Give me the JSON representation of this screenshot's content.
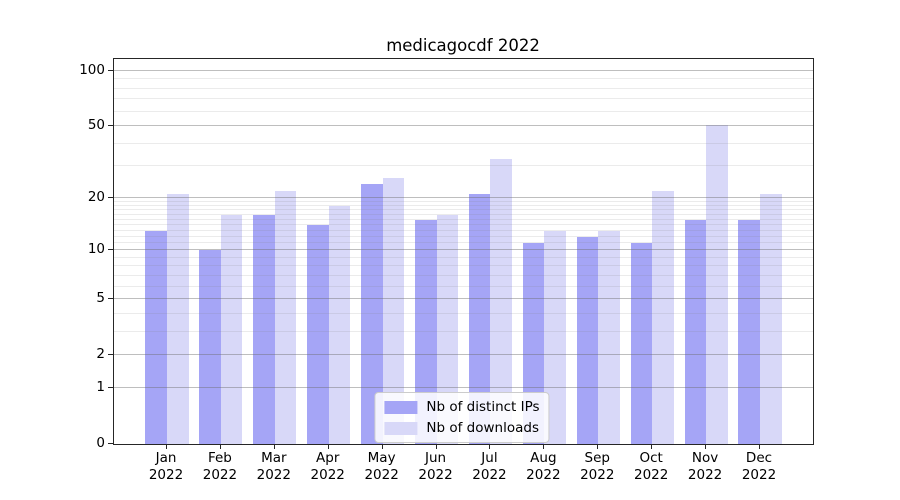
{
  "title": "medicagocdf 2022",
  "colors": {
    "distinct_ips_bar": "#a5a5f6",
    "downloads_bar": "#d8d8f8",
    "major_gridline": "#b0b0b0",
    "minor_gridline": "#e4e4e4",
    "spine": "#262626",
    "legend_border": "#cccccc"
  },
  "legend": {
    "items": [
      {
        "label": "Nb of distinct IPs",
        "color": "#a5a5f6"
      },
      {
        "label": "Nb of downloads",
        "color": "#d8d8f8"
      }
    ],
    "position": "lower center"
  },
  "chart_data": {
    "type": "bar",
    "title": "medicagocdf 2022",
    "scale": "log1p",
    "categories": [
      "Jan 2022",
      "Feb 2022",
      "Mar 2022",
      "Apr 2022",
      "May 2022",
      "Jun 2022",
      "Jul 2022",
      "Aug 2022",
      "Sep 2022",
      "Oct 2022",
      "Nov 2022",
      "Dec 2022"
    ],
    "series": [
      {
        "name": "Nb of distinct IPs",
        "color": "#a5a5f6",
        "values": [
          13,
          10,
          16,
          14,
          24,
          15,
          21,
          11,
          12,
          11,
          15,
          15
        ]
      },
      {
        "name": "Nb of downloads",
        "color": "#d8d8f8",
        "values": [
          21,
          16,
          22,
          18,
          26,
          16,
          33,
          13,
          13,
          22,
          51,
          21
        ]
      }
    ],
    "xlabel": "",
    "ylabel": "",
    "yticks": [
      0,
      1,
      2,
      5,
      10,
      20,
      50,
      100
    ],
    "minor_yticks": [
      3,
      4,
      6,
      7,
      8,
      9,
      11,
      12,
      13,
      14,
      15,
      16,
      17,
      18,
      19,
      30,
      40,
      60,
      70,
      80,
      90
    ],
    "ylim": [
      0,
      116
    ],
    "grid": true,
    "legend_position": "lower center"
  }
}
